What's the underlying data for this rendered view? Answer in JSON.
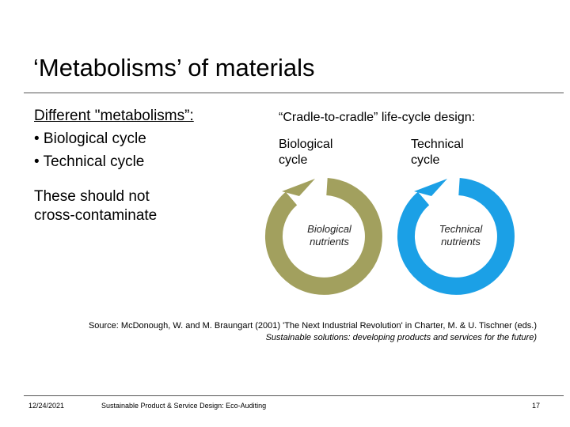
{
  "slide": {
    "title": "‘Metabolisms’ of materials",
    "left": {
      "heading": "Different \"metabolisms”:",
      "bullets": [
        "• Biological cycle",
        "• Technical cycle"
      ],
      "note_line1": "These should not",
      "note_line2": "cross-contaminate"
    },
    "diagram": {
      "title": "“Cradle-to-cradle” life-cycle design:",
      "bio_label_1": "Biological",
      "bio_label_2": "cycle",
      "tech_label_1": "Technical",
      "tech_label_2": "cycle",
      "bio_nutrients_1": "Biological",
      "bio_nutrients_2": "nutrients",
      "tech_nutrients_1": "Technical",
      "tech_nutrients_2": "nutrients",
      "bio_color": "#a2a05e",
      "tech_color": "#1ba0e6"
    },
    "source_line1": "Source: McDonough, W. and M. Braungart (2001) 'The Next Industrial Revolution' in Charter, M. & U. Tischner (eds.)",
    "source_line2": "Sustainable solutions: developing products and services for the future)"
  },
  "footer": {
    "date": "12/24/2021",
    "course": "Sustainable Product & Service Design: Eco-Auditing",
    "page": "17"
  }
}
